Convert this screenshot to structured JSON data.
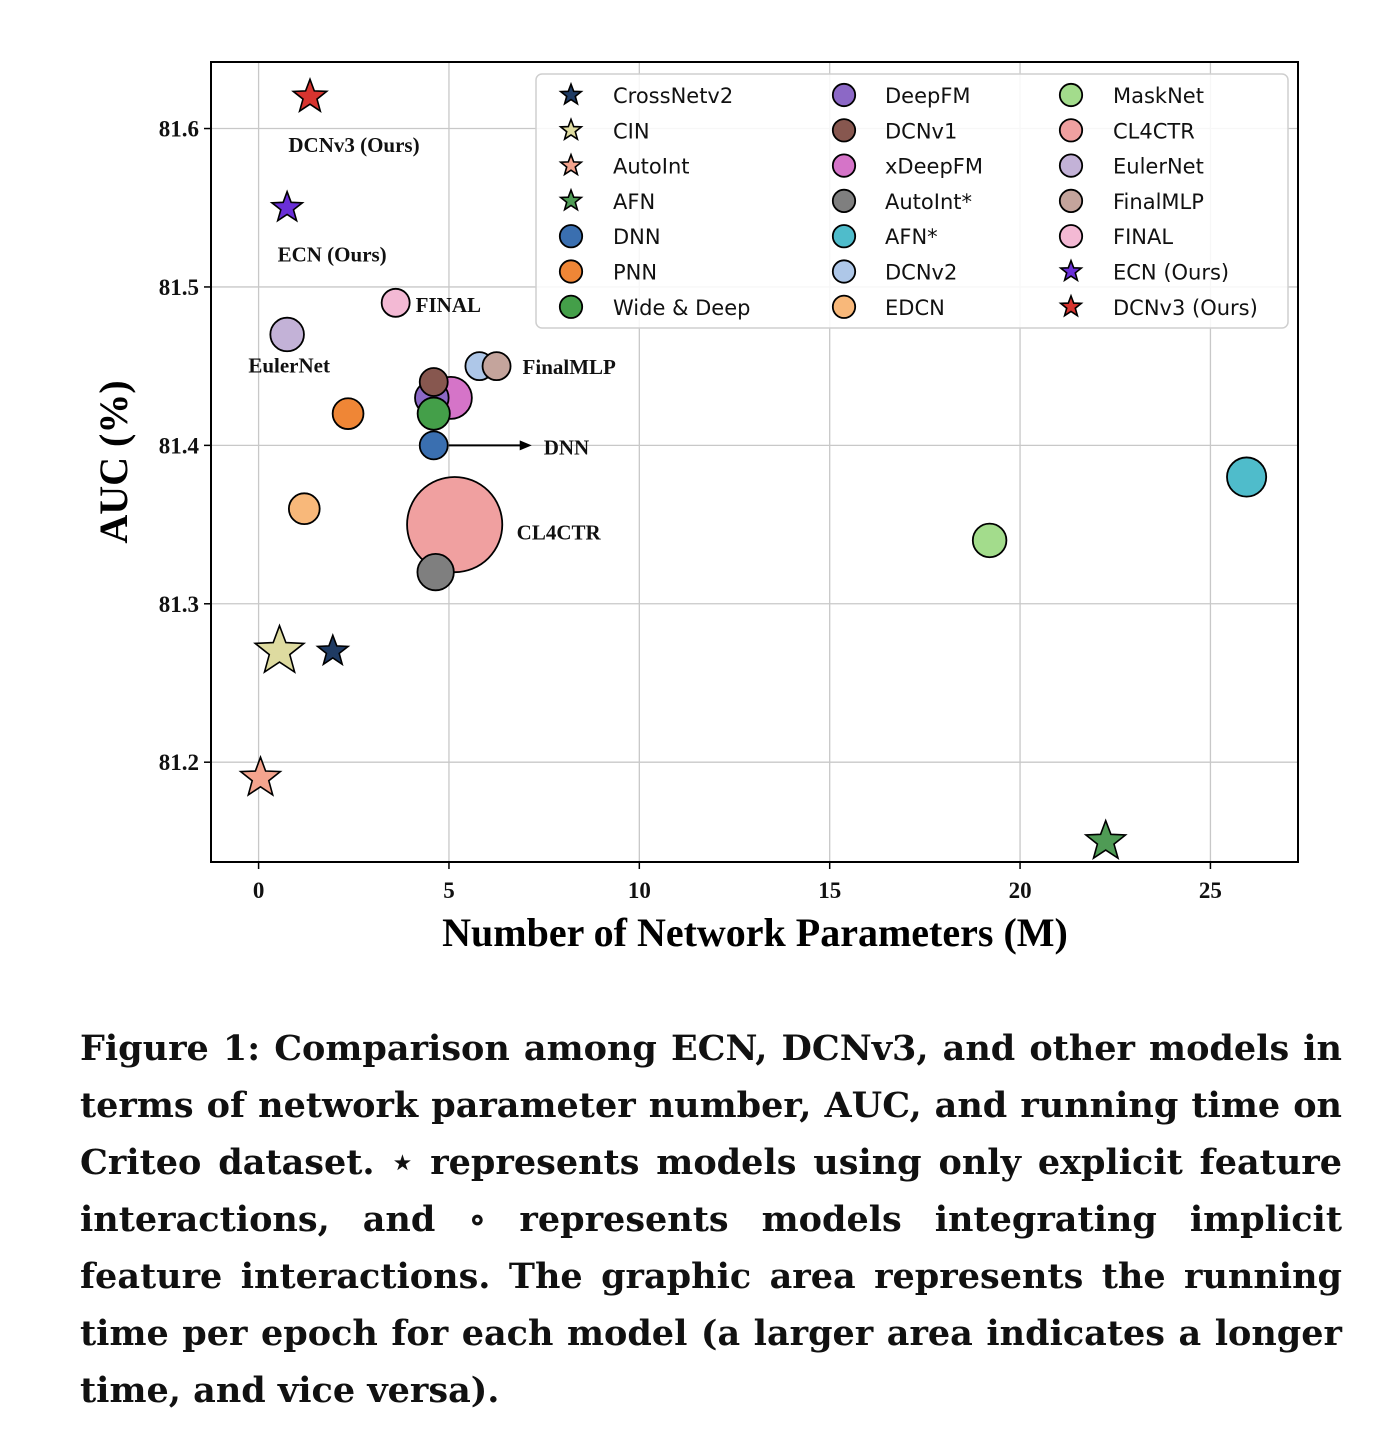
{
  "chart_data": {
    "type": "scatter",
    "xlabel": "Number of Network Parameters (M)",
    "ylabel": "AUC (%)",
    "xlim": [
      -1.25,
      27.3
    ],
    "ylim": [
      81.137,
      81.642
    ],
    "xticks": [
      "0",
      "5",
      "10",
      "15",
      "20",
      "25"
    ],
    "yticks": [
      "81.2",
      "81.3",
      "81.4",
      "81.5",
      "81.6"
    ],
    "grid": true,
    "legend_position": "top-right",
    "series": [
      {
        "name": "CrossNetv2",
        "marker": "star",
        "color": "#1f3b63",
        "x": 1.95,
        "y": 81.27,
        "size": 1.0
      },
      {
        "name": "CIN",
        "marker": "star",
        "color": "#dedba0",
        "x": 0.55,
        "y": 81.27,
        "size": 1.6
      },
      {
        "name": "AutoInt",
        "marker": "star",
        "color": "#f4a48e",
        "x": 0.05,
        "y": 81.19,
        "size": 1.3
      },
      {
        "name": "AFN",
        "marker": "star",
        "color": "#4f9b55",
        "x": 22.25,
        "y": 81.15,
        "size": 1.3
      },
      {
        "name": "DNN",
        "marker": "circle",
        "color": "#3a6fb0",
        "x": 4.6,
        "y": 81.4,
        "size": 1.0
      },
      {
        "name": "PNN",
        "marker": "circle",
        "color": "#ef8636",
        "x": 2.35,
        "y": 81.42,
        "size": 1.1
      },
      {
        "name": "Wide & Deep",
        "marker": "circle",
        "color": "#449f49",
        "x": 4.6,
        "y": 81.42,
        "size": 1.15
      },
      {
        "name": "DeepFM",
        "marker": "circle",
        "color": "#8c68c6",
        "x": 4.55,
        "y": 81.43,
        "size": 1.2
      },
      {
        "name": "DCNv1",
        "marker": "circle",
        "color": "#87574f",
        "x": 4.6,
        "y": 81.44,
        "size": 1.0
      },
      {
        "name": "xDeepFM",
        "marker": "circle",
        "color": "#d574c8",
        "x": 5.05,
        "y": 81.43,
        "size": 1.5
      },
      {
        "name": "AutoInt*",
        "marker": "circle",
        "color": "#7f7f7f",
        "x": 4.65,
        "y": 81.32,
        "size": 1.3
      },
      {
        "name": "AFN*",
        "marker": "circle",
        "color": "#4fbccb",
        "x": 25.95,
        "y": 81.38,
        "size": 1.4
      },
      {
        "name": "DCNv2",
        "marker": "circle",
        "color": "#aec7e8",
        "x": 5.8,
        "y": 81.45,
        "size": 1.0
      },
      {
        "name": "EDCN",
        "marker": "circle",
        "color": "#f8b87a",
        "x": 1.2,
        "y": 81.36,
        "size": 1.1
      },
      {
        "name": "MaskNet",
        "marker": "circle",
        "color": "#a3dc8c",
        "x": 19.2,
        "y": 81.34,
        "size": 1.2
      },
      {
        "name": "CL4CTR",
        "marker": "circle",
        "color": "#f0a0a0",
        "x": 5.15,
        "y": 81.35,
        "size": 3.4
      },
      {
        "name": "EulerNet",
        "marker": "circle",
        "color": "#c3b2d7",
        "x": 0.75,
        "y": 81.47,
        "size": 1.2
      },
      {
        "name": "FinalMLP",
        "marker": "circle",
        "color": "#c4a49c",
        "x": 6.25,
        "y": 81.45,
        "size": 1.0
      },
      {
        "name": "FINAL",
        "marker": "circle",
        "color": "#f3b9d4",
        "x": 3.6,
        "y": 81.49,
        "size": 1.0
      },
      {
        "name": "ECN (Ours)",
        "marker": "star",
        "color": "#6a2fd8",
        "x": 0.75,
        "y": 81.55,
        "size": 1.0
      },
      {
        "name": "DCNv3 (Ours)",
        "marker": "star",
        "color": "#d7342f",
        "x": 1.35,
        "y": 81.62,
        "size": 1.1
      }
    ],
    "annotations": [
      {
        "text": "DCNv3 (Ours)",
        "color": "#e0383b"
      },
      {
        "text": "ECN (Ours)",
        "color": "#e0383b"
      },
      {
        "text": "FINAL",
        "color": "#111111"
      },
      {
        "text": "EulerNet",
        "color": "#111111"
      },
      {
        "text": "FinalMLP",
        "color": "#111111"
      },
      {
        "text": "DNN",
        "color": "#111111"
      },
      {
        "text": "CL4CTR",
        "color": "#111111"
      }
    ]
  },
  "caption": "Figure 1: Comparison among ECN, DCNv3, and other models in terms of network parameter number, AUC, and running time on Criteo dataset. ⋆ represents models using only explicit feature interactions, and ∘ represents models integrating implicit feature interactions. The graphic area represents the running time per epoch for each model (a larger area indicates a longer time, and vice versa)."
}
